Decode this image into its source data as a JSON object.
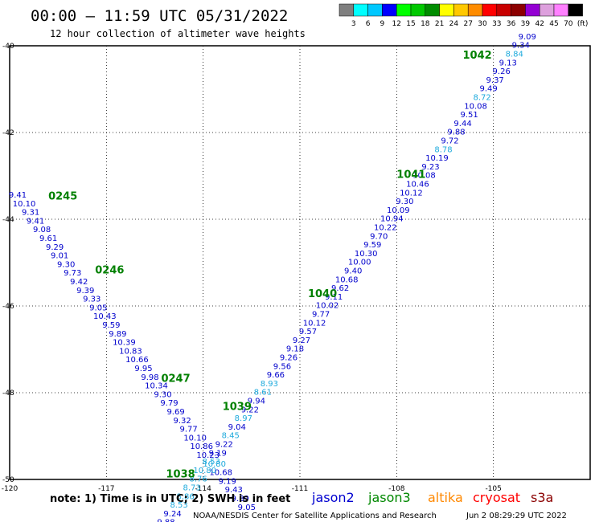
{
  "header": {
    "title": "00:00 – 11:59 UTC 05/31/2022",
    "subtitle": "12 hour collection of altimeter wave heights"
  },
  "color_scale": {
    "colors": [
      "#7f7f7f",
      "#00ffff",
      "#00c8ff",
      "#0000ff",
      "#00ff00",
      "#00c800",
      "#008c00",
      "#ffff00",
      "#ffc800",
      "#ff8c00",
      "#ff0000",
      "#c80000",
      "#8c0000",
      "#9400d3",
      "#dda0dd",
      "#ff80ff",
      "#000000"
    ],
    "labels": [
      "3",
      "6",
      "9",
      "12",
      "15",
      "18",
      "21",
      "24",
      "27",
      "30",
      "33",
      "36",
      "39",
      "42",
      "45",
      "70",
      "(ft)"
    ]
  },
  "footer": {
    "note": "note: 1) Time is in UTC; 2) SWH is in feet",
    "legend": [
      {
        "name": "jason2",
        "color": "#0000d0"
      },
      {
        "name": "jason3",
        "color": "#008800"
      },
      {
        "name": "altika",
        "color": "#ff8800"
      },
      {
        "name": "cryosat",
        "color": "#ff0000"
      },
      {
        "name": "s3a",
        "color": "#8b0000"
      }
    ],
    "credit": "NOAA/NESDIS Center for Satellite Applications and Research",
    "timestamp": "Jun  2 08:29:29 UTC 2022"
  },
  "chart_data": {
    "type": "scatter",
    "xlim": [
      -120,
      -102
    ],
    "ylim": [
      -50,
      -40
    ],
    "x_ticks": [
      "-120",
      "-117",
      "-114",
      "-111",
      "-108",
      "-105"
    ],
    "y_ticks": [
      "-40",
      "-42",
      "-44",
      "-46",
      "-48",
      "-50"
    ],
    "grid": true,
    "colors": {
      "dark": "#0000cc",
      "light": "#1eaadc",
      "pass": "#008000"
    },
    "passes": [
      {
        "label": "0245",
        "x": -118.35,
        "y": -43.55
      },
      {
        "label": "0246",
        "x": -116.9,
        "y": -45.25
      },
      {
        "label": "0247",
        "x": -114.85,
        "y": -47.75
      },
      {
        "label": "1038",
        "x": -114.7,
        "y": -49.95
      },
      {
        "label": "1039",
        "x": -112.95,
        "y": -48.4
      },
      {
        "label": "1040",
        "x": -110.3,
        "y": -45.8
      },
      {
        "label": "1041",
        "x": -107.55,
        "y": -43.05
      },
      {
        "label": "1042",
        "x": -105.5,
        "y": -40.3
      }
    ],
    "tracks": [
      {
        "name": "descending",
        "points": [
          {
            "x": -119.75,
            "y": -43.5,
            "v": "9.41",
            "c": "dark"
          },
          {
            "x": -119.55,
            "y": -43.7,
            "v": "10.10",
            "c": "dark"
          },
          {
            "x": -119.35,
            "y": -43.9,
            "v": "9.31",
            "c": "dark"
          },
          {
            "x": -119.2,
            "y": -44.1,
            "v": "9.41",
            "c": "dark"
          },
          {
            "x": -119.0,
            "y": -44.3,
            "v": "9.08",
            "c": "dark"
          },
          {
            "x": -118.8,
            "y": -44.5,
            "v": "9.61",
            "c": "dark"
          },
          {
            "x": -118.6,
            "y": -44.7,
            "v": "9.29",
            "c": "dark"
          },
          {
            "x": -118.45,
            "y": -44.9,
            "v": "9.01",
            "c": "dark"
          },
          {
            "x": -118.25,
            "y": -45.1,
            "v": "9.30",
            "c": "dark"
          },
          {
            "x": -118.05,
            "y": -45.3,
            "v": "9.73",
            "c": "dark"
          },
          {
            "x": -117.85,
            "y": -45.5,
            "v": "9.42",
            "c": "dark"
          },
          {
            "x": -117.65,
            "y": -45.7,
            "v": "9.39",
            "c": "dark"
          },
          {
            "x": -117.45,
            "y": -45.9,
            "v": "9.33",
            "c": "dark"
          },
          {
            "x": -117.25,
            "y": -46.1,
            "v": "9.05",
            "c": "dark"
          },
          {
            "x": -117.05,
            "y": -46.3,
            "v": "10.43",
            "c": "dark"
          },
          {
            "x": -116.85,
            "y": -46.5,
            "v": "9.59",
            "c": "dark"
          },
          {
            "x": -116.65,
            "y": -46.7,
            "v": "9.89",
            "c": "dark"
          },
          {
            "x": -116.45,
            "y": -46.9,
            "v": "10.39",
            "c": "dark"
          },
          {
            "x": -116.25,
            "y": -47.1,
            "v": "10.83",
            "c": "dark"
          },
          {
            "x": -116.05,
            "y": -47.3,
            "v": "10.66",
            "c": "dark"
          },
          {
            "x": -115.85,
            "y": -47.5,
            "v": "9.95",
            "c": "dark"
          },
          {
            "x": -115.65,
            "y": -47.7,
            "v": "9.98",
            "c": "dark"
          },
          {
            "x": -115.45,
            "y": -47.9,
            "v": "10.34",
            "c": "dark"
          },
          {
            "x": -115.25,
            "y": -48.1,
            "v": "9.30",
            "c": "dark"
          },
          {
            "x": -115.05,
            "y": -48.3,
            "v": "9.79",
            "c": "dark"
          },
          {
            "x": -114.85,
            "y": -48.5,
            "v": "9.69",
            "c": "dark"
          },
          {
            "x": -114.65,
            "y": -48.7,
            "v": "9.32",
            "c": "dark"
          },
          {
            "x": -114.45,
            "y": -48.9,
            "v": "9.77",
            "c": "dark"
          },
          {
            "x": -114.25,
            "y": -49.1,
            "v": "10.10",
            "c": "dark"
          },
          {
            "x": -114.05,
            "y": -49.3,
            "v": "10.86",
            "c": "dark"
          },
          {
            "x": -113.85,
            "y": -49.5,
            "v": "10.23",
            "c": "dark"
          },
          {
            "x": -113.65,
            "y": -49.7,
            "v": "10.80",
            "c": "light"
          },
          {
            "x": -113.45,
            "y": -49.9,
            "v": "10.68",
            "c": "dark"
          },
          {
            "x": -113.25,
            "y": -50.1,
            "v": "9.19",
            "c": "dark"
          },
          {
            "x": -113.05,
            "y": -50.3,
            "v": "9.43",
            "c": "dark"
          },
          {
            "x": -112.85,
            "y": -50.5,
            "v": "9.89",
            "c": "dark"
          },
          {
            "x": -112.65,
            "y": -50.7,
            "v": "9.05",
            "c": "dark"
          }
        ]
      },
      {
        "name": "ascending",
        "points": [
          {
            "x": -115.15,
            "y": -51.05,
            "v": "9.88",
            "c": "dark"
          },
          {
            "x": -114.95,
            "y": -50.85,
            "v": "9.24",
            "c": "dark"
          },
          {
            "x": -114.75,
            "y": -50.65,
            "v": "8.53",
            "c": "light"
          },
          {
            "x": -114.55,
            "y": -50.45,
            "v": "8.86",
            "c": "light"
          },
          {
            "x": -114.35,
            "y": -50.25,
            "v": "8.73",
            "c": "light"
          },
          {
            "x": -114.15,
            "y": -50.05,
            "v": "8.76",
            "c": "light"
          },
          {
            "x": -113.95,
            "y": -49.85,
            "v": "10.80",
            "c": "light"
          },
          {
            "x": -113.75,
            "y": -49.65,
            "v": "8.53",
            "c": "light"
          },
          {
            "x": -113.55,
            "y": -49.45,
            "v": "9.19",
            "c": "dark"
          },
          {
            "x": -113.35,
            "y": -49.25,
            "v": "9.22",
            "c": "dark"
          },
          {
            "x": -113.15,
            "y": -49.05,
            "v": "8.45",
            "c": "light"
          },
          {
            "x": -112.95,
            "y": -48.85,
            "v": "9.04",
            "c": "dark"
          },
          {
            "x": -112.75,
            "y": -48.65,
            "v": "8.97",
            "c": "light"
          },
          {
            "x": -112.55,
            "y": -48.45,
            "v": "9.22",
            "c": "dark"
          },
          {
            "x": -112.35,
            "y": -48.25,
            "v": "9.94",
            "c": "dark"
          },
          {
            "x": -112.15,
            "y": -48.05,
            "v": "8.61",
            "c": "light"
          },
          {
            "x": -111.95,
            "y": -47.85,
            "v": "8.93",
            "c": "light"
          },
          {
            "x": -111.75,
            "y": -47.65,
            "v": "9.66",
            "c": "dark"
          },
          {
            "x": -111.55,
            "y": -47.45,
            "v": "9.56",
            "c": "dark"
          },
          {
            "x": -111.35,
            "y": -47.25,
            "v": "9.26",
            "c": "dark"
          },
          {
            "x": -111.15,
            "y": -47.05,
            "v": "9.18",
            "c": "dark"
          },
          {
            "x": -110.95,
            "y": -46.85,
            "v": "9.27",
            "c": "dark"
          },
          {
            "x": -110.75,
            "y": -46.65,
            "v": "9.57",
            "c": "dark"
          },
          {
            "x": -110.55,
            "y": -46.45,
            "v": "10.12",
            "c": "dark"
          },
          {
            "x": -110.35,
            "y": -46.25,
            "v": "9.77",
            "c": "dark"
          },
          {
            "x": -110.15,
            "y": -46.05,
            "v": "10.02",
            "c": "dark"
          },
          {
            "x": -109.95,
            "y": -45.85,
            "v": "9.11",
            "c": "dark"
          },
          {
            "x": -109.75,
            "y": -45.65,
            "v": "9.62",
            "c": "dark"
          },
          {
            "x": -109.55,
            "y": -45.45,
            "v": "10.68",
            "c": "dark"
          },
          {
            "x": -109.35,
            "y": -45.25,
            "v": "9.40",
            "c": "dark"
          },
          {
            "x": -109.15,
            "y": -45.05,
            "v": "10.00",
            "c": "dark"
          },
          {
            "x": -108.95,
            "y": -44.85,
            "v": "10.30",
            "c": "dark"
          },
          {
            "x": -108.75,
            "y": -44.65,
            "v": "9.59",
            "c": "dark"
          },
          {
            "x": -108.55,
            "y": -44.45,
            "v": "9.70",
            "c": "dark"
          },
          {
            "x": -108.35,
            "y": -44.25,
            "v": "10.22",
            "c": "dark"
          },
          {
            "x": -108.15,
            "y": -44.05,
            "v": "10.94",
            "c": "dark"
          },
          {
            "x": -107.95,
            "y": -43.85,
            "v": "10.09",
            "c": "dark"
          },
          {
            "x": -107.75,
            "y": -43.65,
            "v": "9.30",
            "c": "dark"
          },
          {
            "x": -107.55,
            "y": -43.45,
            "v": "10.12",
            "c": "dark"
          },
          {
            "x": -107.35,
            "y": -43.25,
            "v": "10.46",
            "c": "dark"
          },
          {
            "x": -107.15,
            "y": -43.05,
            "v": "10.08",
            "c": "dark"
          },
          {
            "x": -106.95,
            "y": -42.85,
            "v": "9.23",
            "c": "dark"
          },
          {
            "x": -106.75,
            "y": -42.65,
            "v": "10.19",
            "c": "dark"
          },
          {
            "x": -106.55,
            "y": -42.45,
            "v": "8.78",
            "c": "light"
          },
          {
            "x": -106.35,
            "y": -42.25,
            "v": "9.72",
            "c": "dark"
          },
          {
            "x": -106.15,
            "y": -42.05,
            "v": "9.88",
            "c": "dark"
          },
          {
            "x": -105.95,
            "y": -41.85,
            "v": "9.44",
            "c": "dark"
          },
          {
            "x": -105.75,
            "y": -41.65,
            "v": "9.51",
            "c": "dark"
          },
          {
            "x": -105.55,
            "y": -41.45,
            "v": "10.08",
            "c": "dark"
          },
          {
            "x": -105.35,
            "y": -41.25,
            "v": "8.72",
            "c": "light"
          },
          {
            "x": -105.15,
            "y": -41.05,
            "v": "9.49",
            "c": "dark"
          },
          {
            "x": -104.95,
            "y": -40.85,
            "v": "9.37",
            "c": "dark"
          },
          {
            "x": -104.75,
            "y": -40.65,
            "v": "9.26",
            "c": "dark"
          },
          {
            "x": -104.55,
            "y": -40.45,
            "v": "9.13",
            "c": "dark"
          },
          {
            "x": -104.35,
            "y": -40.25,
            "v": "8.84",
            "c": "light"
          },
          {
            "x": -104.15,
            "y": -40.05,
            "v": "9.34",
            "c": "dark"
          },
          {
            "x": -103.95,
            "y": -39.85,
            "v": "9.09",
            "c": "dark"
          }
        ]
      }
    ]
  }
}
